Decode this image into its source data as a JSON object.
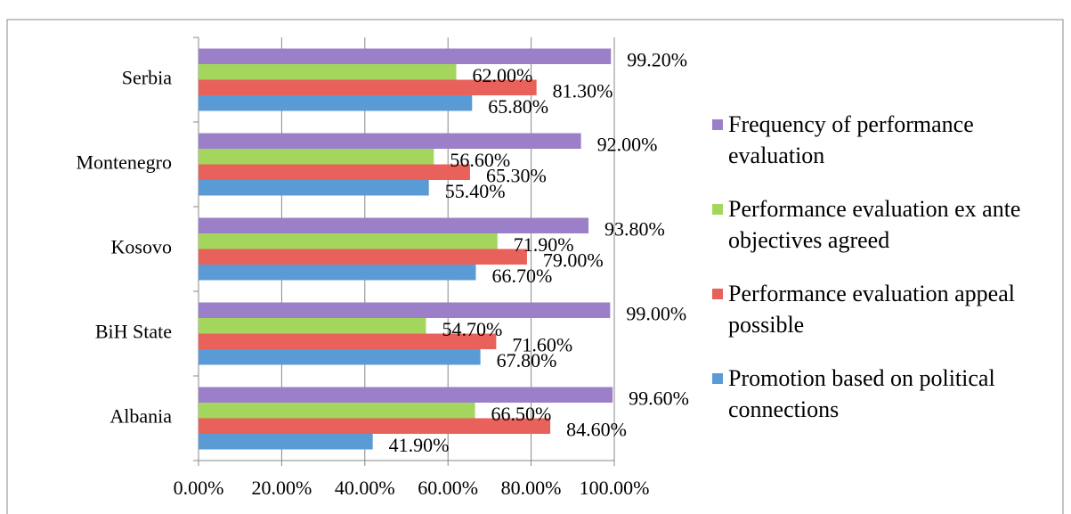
{
  "chart_data": {
    "type": "hbar",
    "categories": [
      "Albania",
      "BiH State",
      "Kosovo",
      "Montenegro",
      "Serbia"
    ],
    "series": [
      {
        "name": "Promotion based on political connections",
        "color": "#5b9bd5",
        "values": [
          41.9,
          67.8,
          66.7,
          55.4,
          65.8
        ],
        "value_labels": [
          "41.90%",
          "67.80%",
          "66.70%",
          "55.40%",
          "65.80%"
        ]
      },
      {
        "name": "Performance evaluation appeal possible",
        "color": "#e8615a",
        "values": [
          84.6,
          71.6,
          79.0,
          65.3,
          81.3
        ],
        "value_labels": [
          "84.60%",
          "71.60%",
          "79.00%",
          "65.30%",
          "81.30%"
        ]
      },
      {
        "name": "Performance evaluation ex ante objectives agreed",
        "color": "#a4d65e",
        "values": [
          66.5,
          54.7,
          71.9,
          56.6,
          62.0
        ],
        "value_labels": [
          "66.50%",
          "54.70%",
          "71.90%",
          "56.60%",
          "62.00%"
        ]
      },
      {
        "name": "Frequency of performance evaluation",
        "color": "#9b7fc8",
        "values": [
          99.6,
          99.0,
          93.8,
          92.0,
          99.2
        ],
        "value_labels": [
          "99.60%",
          "99.00%",
          "93.80%",
          "92.00%",
          "99.20%"
        ]
      }
    ],
    "xlim": [
      0,
      100
    ],
    "xticks": [
      {
        "value": 0,
        "label": "0.00%"
      },
      {
        "value": 20,
        "label": "20.00%"
      },
      {
        "value": 40,
        "label": "40.00%"
      },
      {
        "value": 60,
        "label": "60.00%"
      },
      {
        "value": 80,
        "label": "80.00%"
      },
      {
        "value": 100,
        "label": "100.00%"
      }
    ],
    "grid": true,
    "legend": "right"
  }
}
